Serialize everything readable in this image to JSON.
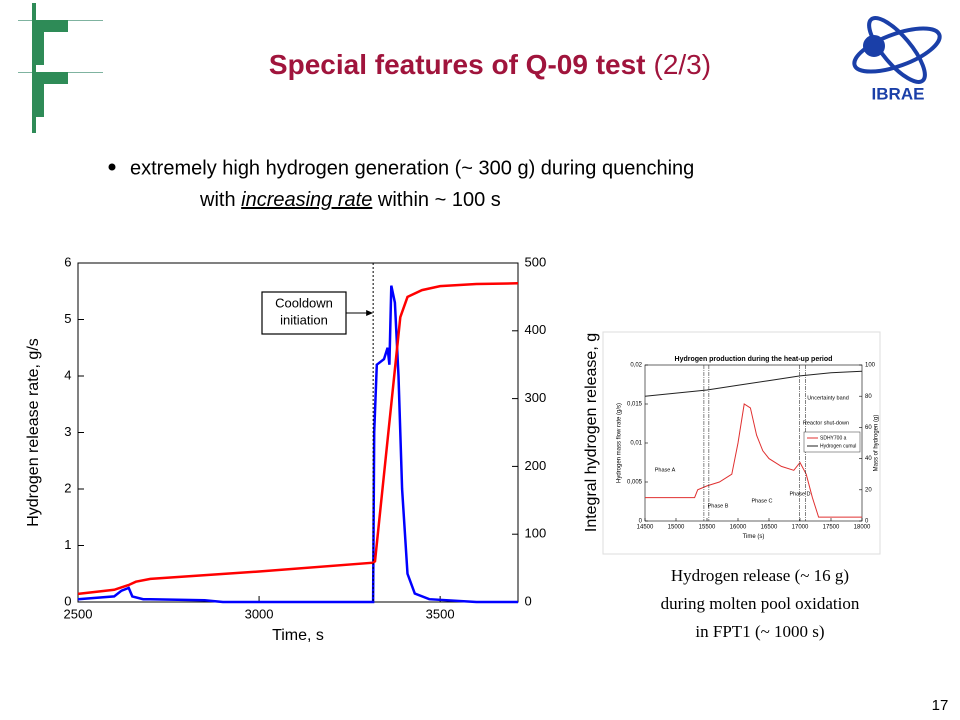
{
  "slide": {
    "title": "Special features of Q-09 test",
    "title_part": "(2/3)",
    "bullet": "extremely high hydrogen generation (~ 300 g) during quenching",
    "bullet_line2": [
      "with",
      "increasing rate",
      "within ~ 100 s"
    ],
    "caption": [
      "Hydrogen release (~ 16 g)",
      "during molten pool oxidation",
      "in FPT1 (~ 1000 s)"
    ],
    "page_number": "17",
    "logo": "IBRAE"
  },
  "chart_data": [
    {
      "type": "line",
      "xlabel": "Time, s",
      "ylabel": "Hydrogen release rate, g/s",
      "y2label": "Integral hydrogen release, g",
      "xlim": [
        2500,
        3715
      ],
      "xticks": [
        2500,
        3000,
        3500
      ],
      "ylim": [
        0,
        6
      ],
      "yticks": [
        0,
        1,
        2,
        3,
        4,
        5,
        6
      ],
      "y2lim": [
        0,
        500
      ],
      "y2ticks": [
        0,
        100,
        200,
        300,
        400,
        500
      ],
      "annotation": {
        "text": [
          "Cooldown",
          "initiation"
        ],
        "x": 3315
      },
      "series": [
        {
          "name": "Hydrogen release rate",
          "color": "#0000ff",
          "axis": "y",
          "x": [
            2500,
            2600,
            2620,
            2640,
            2650,
            2680,
            2700,
            2850,
            2900,
            3315,
            3318,
            3325,
            3345,
            3355,
            3360,
            3365,
            3375,
            3385,
            3395,
            3410,
            3430,
            3470,
            3600,
            3715
          ],
          "values": [
            0.05,
            0.1,
            0.2,
            0.25,
            0.1,
            0.05,
            0.05,
            0.03,
            0,
            0,
            3,
            4.2,
            4.3,
            4.5,
            4.2,
            5.6,
            5.3,
            4,
            2,
            0.5,
            0.15,
            0.05,
            0,
            0
          ]
        },
        {
          "name": "Integral hydrogen release",
          "color": "#ff0000",
          "axis": "y2",
          "x": [
            2500,
            2600,
            2640,
            2660,
            2700,
            3000,
            3315,
            3320,
            3390,
            3410,
            3450,
            3500,
            3600,
            3715
          ],
          "values": [
            12,
            18,
            25,
            30,
            34,
            45,
            58,
            60,
            420,
            450,
            460,
            466,
            469,
            470
          ]
        }
      ]
    },
    {
      "type": "line",
      "title": "Hydrogen production during the heat-up period",
      "xlabel": "Time (s)",
      "ylabel": "Hydrogen mass flow rate (g/s)",
      "y2label": "Mass of hydrogen (g)",
      "xlim": [
        14500,
        18000
      ],
      "xticks": [
        14500,
        15000,
        15500,
        16000,
        16500,
        17000,
        17500,
        18000
      ],
      "ylim": [
        0,
        0.02
      ],
      "yticks": [
        0,
        {
          "value": 0.005,
          "label": "0,005"
        },
        {
          "value": 0.01,
          "label": "0,01"
        },
        {
          "value": 0.015,
          "label": "0,015"
        },
        {
          "value": 0.02,
          "label": "0,02"
        }
      ],
      "y2lim": [
        0,
        100
      ],
      "y2ticks": [
        0,
        20,
        40,
        60,
        80,
        100
      ],
      "labels": [
        "Phase A",
        "Phase B",
        "Phase C",
        "Phase D",
        "Reactor shut-down",
        "Uncertainty band"
      ],
      "series": [
        {
          "name": "SDHY700 a",
          "color": "#e03030",
          "axis": "y",
          "x": [
            14500,
            15300,
            15350,
            15500,
            15700,
            15900,
            16000,
            16100,
            16200,
            16300,
            16400,
            16500,
            16700,
            16900,
            17000,
            17100,
            17200,
            17300,
            18000
          ],
          "values": [
            0.003,
            0.003,
            0.004,
            0.0045,
            0.005,
            0.006,
            0.01,
            0.015,
            0.0145,
            0.011,
            0.009,
            0.008,
            0.007,
            0.0065,
            0.0075,
            0.006,
            0.003,
            0.0005,
            0.0005
          ]
        },
        {
          "name": "Hydrogen cumul",
          "color": "#222222",
          "axis": "y2",
          "x": [
            14500,
            15500,
            16000,
            16500,
            17000,
            17500,
            18000
          ],
          "values": [
            80,
            84,
            87,
            90,
            93,
            95,
            96
          ]
        }
      ]
    }
  ]
}
